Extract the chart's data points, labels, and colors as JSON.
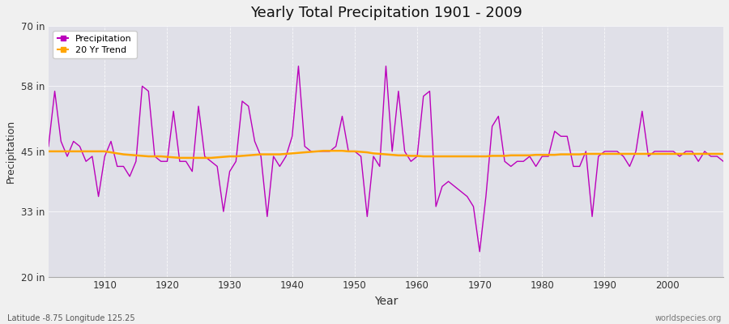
{
  "title": "Yearly Total Precipitation 1901 - 2009",
  "xlabel": "Year",
  "ylabel": "Precipitation",
  "footnote_left": "Latitude -8.75 Longitude 125.25",
  "footnote_right": "worldspecies.org",
  "legend_labels": [
    "Precipitation",
    "20 Yr Trend"
  ],
  "precip_color": "#bb00bb",
  "trend_color": "#ffa500",
  "fig_bg_color": "#f0f0f0",
  "plot_bg_color": "#e0e0e8",
  "ylim": [
    20,
    70
  ],
  "yticks": [
    20,
    33,
    45,
    58,
    70
  ],
  "ytick_labels": [
    "20 in",
    "33 in",
    "45 in",
    "58 in",
    "70 in"
  ],
  "xlim": [
    1901,
    2009
  ],
  "xticks": [
    1910,
    1920,
    1930,
    1940,
    1950,
    1960,
    1970,
    1980,
    1990,
    2000
  ],
  "years": [
    1901,
    1902,
    1903,
    1904,
    1905,
    1906,
    1907,
    1908,
    1909,
    1910,
    1911,
    1912,
    1913,
    1914,
    1915,
    1916,
    1917,
    1918,
    1919,
    1920,
    1921,
    1922,
    1923,
    1924,
    1925,
    1926,
    1927,
    1928,
    1929,
    1930,
    1931,
    1932,
    1933,
    1934,
    1935,
    1936,
    1937,
    1938,
    1939,
    1940,
    1941,
    1942,
    1943,
    1944,
    1945,
    1946,
    1947,
    1948,
    1949,
    1950,
    1951,
    1952,
    1953,
    1954,
    1955,
    1956,
    1957,
    1958,
    1959,
    1960,
    1961,
    1962,
    1963,
    1964,
    1965,
    1966,
    1967,
    1968,
    1969,
    1970,
    1971,
    1972,
    1973,
    1974,
    1975,
    1976,
    1977,
    1978,
    1979,
    1980,
    1981,
    1982,
    1983,
    1984,
    1985,
    1986,
    1987,
    1988,
    1989,
    1990,
    1991,
    1992,
    1993,
    1994,
    1995,
    1996,
    1997,
    1998,
    1999,
    2000,
    2001,
    2002,
    2003,
    2004,
    2005,
    2006,
    2007,
    2008,
    2009
  ],
  "precip": [
    46,
    57,
    47,
    44,
    47,
    46,
    43,
    44,
    36,
    44,
    47,
    42,
    42,
    40,
    43,
    58,
    57,
    44,
    43,
    43,
    53,
    43,
    43,
    41,
    54,
    44,
    43,
    42,
    33,
    41,
    43,
    55,
    54,
    47,
    44,
    32,
    44,
    42,
    44,
    48,
    62,
    46,
    45,
    45,
    45,
    45,
    46,
    52,
    45,
    45,
    44,
    32,
    44,
    42,
    62,
    45,
    57,
    45,
    43,
    44,
    56,
    57,
    34,
    38,
    39,
    38,
    37,
    36,
    34,
    25,
    36,
    50,
    52,
    43,
    42,
    43,
    43,
    44,
    42,
    44,
    44,
    49,
    48,
    48,
    42,
    42,
    45,
    32,
    44,
    45,
    45,
    45,
    44,
    42,
    45,
    53,
    44,
    45,
    45,
    45,
    45,
    44,
    45,
    45,
    43,
    45,
    44,
    44,
    43
  ],
  "trend": [
    45.0,
    45.0,
    45.0,
    45.0,
    45.0,
    45.0,
    45.0,
    45.0,
    45.0,
    45.0,
    44.8,
    44.6,
    44.4,
    44.3,
    44.2,
    44.1,
    44.0,
    44.0,
    44.0,
    43.9,
    43.8,
    43.7,
    43.7,
    43.7,
    43.7,
    43.7,
    43.7,
    43.8,
    43.9,
    44.0,
    44.0,
    44.1,
    44.2,
    44.3,
    44.4,
    44.4,
    44.4,
    44.4,
    44.5,
    44.6,
    44.7,
    44.8,
    44.9,
    45.0,
    45.1,
    45.1,
    45.1,
    45.1,
    45.0,
    45.0,
    44.9,
    44.8,
    44.6,
    44.5,
    44.4,
    44.3,
    44.2,
    44.2,
    44.1,
    44.1,
    44.0,
    44.0,
    44.0,
    44.0,
    44.0,
    44.0,
    44.0,
    44.0,
    44.0,
    44.0,
    44.0,
    44.1,
    44.1,
    44.1,
    44.2,
    44.2,
    44.2,
    44.2,
    44.3,
    44.3,
    44.3,
    44.3,
    44.4,
    44.4,
    44.4,
    44.4,
    44.5,
    44.5,
    44.5,
    44.5,
    44.5,
    44.5,
    44.5,
    44.5,
    44.5,
    44.5,
    44.5,
    44.5,
    44.5,
    44.5,
    44.5,
    44.5,
    44.5,
    44.5,
    44.5,
    44.5,
    44.5,
    44.5,
    44.5
  ]
}
